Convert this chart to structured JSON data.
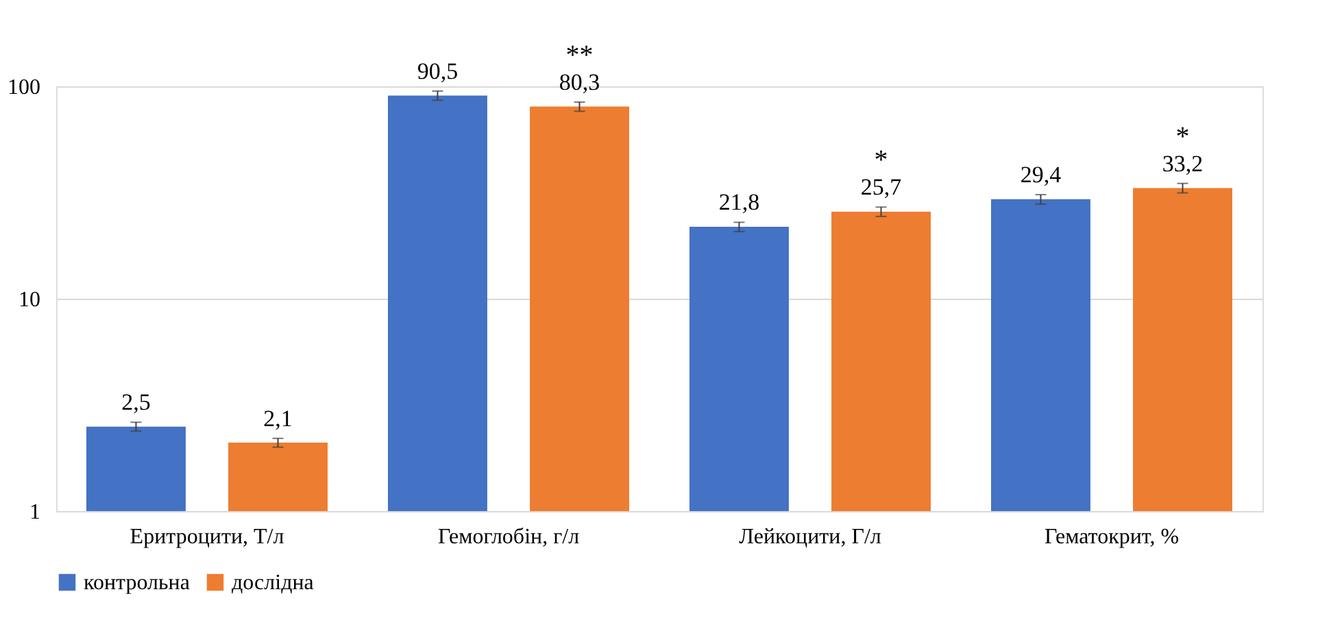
{
  "chart_data": {
    "type": "bar",
    "categories": [
      "Еритроцити, Т/л",
      "Гемоглобін, г/л",
      "Лейкоцити, Г/л",
      "Гематокрит, %"
    ],
    "series": [
      {
        "name": "контрольна",
        "color": "#4472c4",
        "values": [
          2.5,
          90.5,
          21.8,
          29.4
        ],
        "errors": [
          0.12,
          4.5,
          1.1,
          1.5
        ],
        "value_labels": [
          "2,5",
          "90,5",
          "21,8",
          "29,4"
        ]
      },
      {
        "name": "дослідна",
        "color": "#ed7d31",
        "values": [
          2.1,
          80.3,
          25.7,
          33.2
        ],
        "errors": [
          0.1,
          4,
          1.3,
          1.7
        ],
        "value_labels": [
          "2,1",
          "80,3",
          "25,7",
          "33,2"
        ]
      }
    ],
    "log": true,
    "ylim": [
      1,
      100
    ],
    "yticks": [
      1,
      10,
      100
    ],
    "grid": "y",
    "legend": "bottom",
    "annotations": [
      "**",
      "*",
      "*"
    ]
  }
}
